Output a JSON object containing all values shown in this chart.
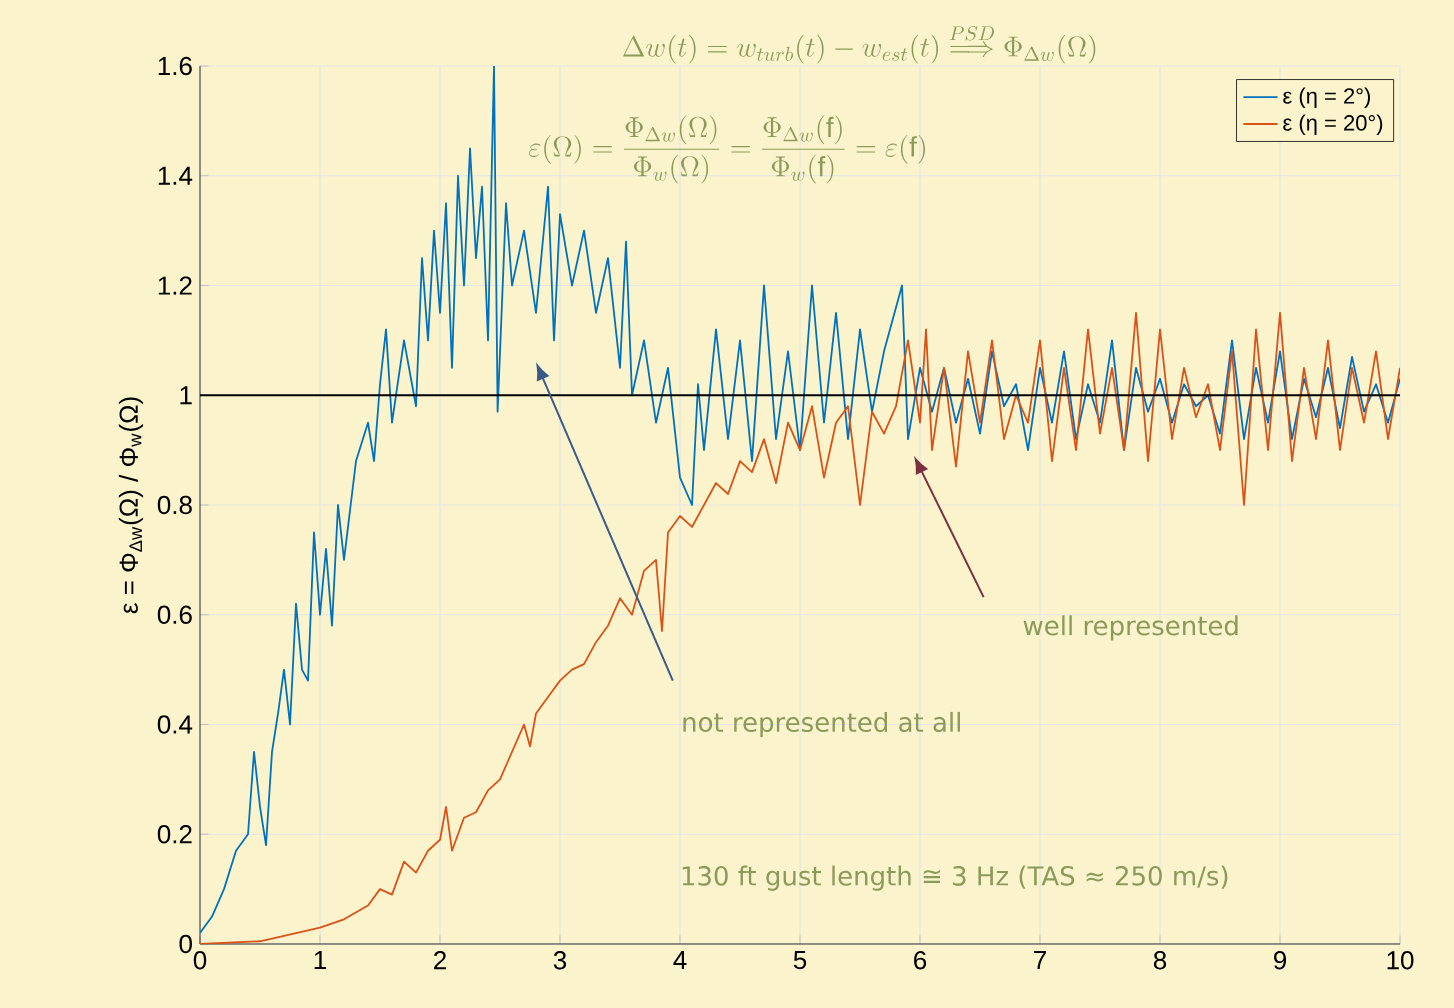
{
  "chart_data": {
    "type": "line",
    "ylabel": "ε = Φ$_{Δw}$(Ω) / Φ$_{w}$(Ω)",
    "xlim": [
      0,
      10
    ],
    "ylim": [
      0,
      1.6
    ],
    "xticks": [
      0,
      1,
      2,
      3,
      4,
      5,
      6,
      7,
      8,
      9,
      10
    ],
    "yticks": [
      0,
      0.2,
      0.4,
      0.6,
      0.8,
      1,
      1.2,
      1.4,
      1.6
    ],
    "grid": true,
    "legend": "top right",
    "ref_lines": [
      {
        "axis": "y",
        "value": 1,
        "color": "#000000"
      }
    ],
    "annotations": [
      "\\Delta w(t) = w_{turb}(t) - w_{est}(t) \\overset{PSD}{\\Longrightarrow} \\Phi_{\\Delta w}(\\Omega)",
      "\\varepsilon(\\Omega) = \\frac{\\Phi_{\\Delta w}(\\Omega)}{\\Phi_{w}(\\Omega)} = \\frac{\\Phi_{\\Delta w}(\\mathrm{f})}{\\Phi_{w}(\\mathrm{f})} = \\varepsilon(\\mathrm{f})",
      "not represented at all",
      "well represented",
      "130 ft gust length ≅ 3 Hz (TAS ≈ 250 m/s)"
    ],
    "series": [
      {
        "name": "ε (η = 2°)",
        "color": "#0072bd",
        "x": [
          0,
          0.1,
          0.2,
          0.3,
          0.4,
          0.45,
          0.5,
          0.55,
          0.6,
          0.65,
          0.7,
          0.75,
          0.8,
          0.85,
          0.9,
          0.95,
          1.0,
          1.05,
          1.1,
          1.15,
          1.2,
          1.3,
          1.4,
          1.45,
          1.5,
          1.55,
          1.6,
          1.7,
          1.8,
          1.85,
          1.9,
          1.95,
          2.0,
          2.05,
          2.1,
          2.15,
          2.2,
          2.25,
          2.3,
          2.35,
          2.4,
          2.45,
          2.48,
          2.55,
          2.6,
          2.7,
          2.8,
          2.9,
          2.95,
          3.0,
          3.1,
          3.2,
          3.3,
          3.4,
          3.5,
          3.55,
          3.6,
          3.7,
          3.8,
          3.9,
          4.0,
          4.1,
          4.15,
          4.2,
          4.3,
          4.4,
          4.5,
          4.6,
          4.7,
          4.8,
          4.9,
          5.0,
          5.1,
          5.2,
          5.3,
          5.4,
          5.5,
          5.6,
          5.7,
          5.85,
          5.9,
          6.0,
          6.1,
          6.2,
          6.3,
          6.4,
          6.5,
          6.6,
          6.7,
          6.8,
          6.9,
          7.0,
          7.1,
          7.2,
          7.3,
          7.4,
          7.5,
          7.6,
          7.7,
          7.8,
          7.9,
          8.0,
          8.1,
          8.2,
          8.3,
          8.4,
          8.5,
          8.6,
          8.7,
          8.8,
          8.9,
          9.0,
          9.1,
          9.2,
          9.3,
          9.4,
          9.5,
          9.6,
          9.7,
          9.8,
          9.9,
          10
        ],
        "values": [
          0.02,
          0.05,
          0.1,
          0.17,
          0.2,
          0.35,
          0.25,
          0.18,
          0.35,
          0.42,
          0.5,
          0.4,
          0.62,
          0.5,
          0.48,
          0.75,
          0.6,
          0.72,
          0.58,
          0.8,
          0.7,
          0.88,
          0.95,
          0.88,
          1.02,
          1.12,
          0.95,
          1.1,
          0.98,
          1.25,
          1.1,
          1.3,
          1.15,
          1.35,
          1.05,
          1.4,
          1.2,
          1.45,
          1.25,
          1.38,
          1.1,
          1.6,
          0.97,
          1.35,
          1.2,
          1.3,
          1.15,
          1.38,
          1.1,
          1.33,
          1.2,
          1.3,
          1.15,
          1.25,
          1.05,
          1.28,
          1.0,
          1.1,
          0.95,
          1.05,
          0.85,
          0.8,
          1.02,
          0.9,
          1.12,
          0.92,
          1.1,
          0.88,
          1.2,
          0.92,
          1.08,
          0.9,
          1.2,
          0.95,
          1.15,
          0.92,
          1.12,
          0.97,
          1.08,
          1.2,
          0.92,
          1.05,
          0.97,
          1.05,
          0.95,
          1.03,
          0.93,
          1.08,
          0.98,
          1.02,
          0.9,
          1.05,
          0.95,
          1.08,
          0.92,
          1.02,
          0.95,
          1.1,
          0.9,
          1.05,
          0.97,
          1.03,
          0.95,
          1.02,
          0.98,
          1.0,
          0.93,
          1.1,
          0.92,
          1.05,
          0.95,
          1.08,
          0.92,
          1.03,
          0.96,
          1.05,
          0.94,
          1.07,
          0.97,
          1.02,
          0.95,
          1.03
        ]
      },
      {
        "name": "ε (η = 20°)",
        "color": "#d95319",
        "x": [
          0,
          0.5,
          1,
          1.2,
          1.4,
          1.5,
          1.6,
          1.7,
          1.8,
          1.9,
          2.0,
          2.05,
          2.1,
          2.2,
          2.3,
          2.4,
          2.5,
          2.6,
          2.7,
          2.75,
          2.8,
          2.9,
          3.0,
          3.1,
          3.2,
          3.3,
          3.4,
          3.5,
          3.6,
          3.7,
          3.8,
          3.85,
          3.9,
          4.0,
          4.1,
          4.2,
          4.3,
          4.4,
          4.5,
          4.6,
          4.7,
          4.8,
          4.9,
          5.0,
          5.1,
          5.2,
          5.3,
          5.4,
          5.5,
          5.6,
          5.7,
          5.8,
          5.9,
          6.0,
          6.05,
          6.1,
          6.2,
          6.3,
          6.4,
          6.5,
          6.6,
          6.7,
          6.8,
          6.9,
          7.0,
          7.1,
          7.2,
          7.3,
          7.4,
          7.5,
          7.6,
          7.7,
          7.8,
          7.9,
          8.0,
          8.1,
          8.2,
          8.3,
          8.4,
          8.5,
          8.6,
          8.7,
          8.8,
          8.9,
          9.0,
          9.1,
          9.2,
          9.3,
          9.4,
          9.5,
          9.6,
          9.7,
          9.8,
          9.9,
          10
        ],
        "values": [
          0,
          0.005,
          0.03,
          0.045,
          0.07,
          0.1,
          0.09,
          0.15,
          0.13,
          0.17,
          0.19,
          0.25,
          0.17,
          0.23,
          0.24,
          0.28,
          0.3,
          0.35,
          0.4,
          0.36,
          0.42,
          0.45,
          0.48,
          0.5,
          0.51,
          0.55,
          0.58,
          0.63,
          0.6,
          0.68,
          0.7,
          0.57,
          0.75,
          0.78,
          0.76,
          0.8,
          0.84,
          0.82,
          0.88,
          0.86,
          0.92,
          0.84,
          0.95,
          0.9,
          0.98,
          0.85,
          0.95,
          0.98,
          0.8,
          0.97,
          0.93,
          0.98,
          1.1,
          0.95,
          1.12,
          0.9,
          1.05,
          0.87,
          1.08,
          0.95,
          1.1,
          0.92,
          1.0,
          0.95,
          1.1,
          0.88,
          1.05,
          0.9,
          1.12,
          0.93,
          1.05,
          0.9,
          1.15,
          0.88,
          1.12,
          0.92,
          1.05,
          0.96,
          1.02,
          0.9,
          1.08,
          0.8,
          1.12,
          0.9,
          1.15,
          0.88,
          1.05,
          0.92,
          1.1,
          0.9,
          1.05,
          0.95,
          1.08,
          0.92,
          1.05
        ]
      }
    ]
  }
}
